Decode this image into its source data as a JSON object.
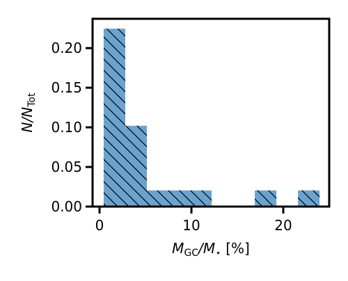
{
  "chart_data": {
    "type": "histogram",
    "bins": [
      0.45,
      2.8,
      5.15,
      7.5,
      9.85,
      12.2,
      14.55,
      16.9,
      19.25,
      21.6,
      23.95
    ],
    "values": [
      0.2245,
      0.102,
      0.0204,
      0.0204,
      0.0204,
      0,
      0,
      0.0204,
      0,
      0.0204
    ],
    "color": "#6ba3cf",
    "hatch": "\\",
    "xlim": [
      -0.76,
      25.0
    ],
    "ylim": [
      0,
      0.237
    ],
    "xticks": [
      0,
      10,
      20
    ],
    "yticks": [
      {
        "value": 0,
        "label": "0.00"
      },
      {
        "value": 0.05,
        "label": "0.05"
      },
      {
        "value": 0.1,
        "label": "0.10"
      },
      {
        "value": 0.15,
        "label": "0.15"
      },
      {
        "value": 0.2,
        "label": "0.20"
      }
    ],
    "xlabel": [
      {
        "text": "M",
        "italic": true
      },
      {
        "text": "GC",
        "sub": true
      },
      {
        "text": "/",
        "italic": true
      },
      {
        "text": "M",
        "italic": true
      },
      {
        "text": "⋆",
        "sub": true
      },
      {
        "text": " [%]"
      }
    ],
    "ylabel": [
      {
        "text": "N",
        "italic": true
      },
      {
        "text": "/",
        "italic": true
      },
      {
        "text": "N",
        "italic": true
      },
      {
        "text": "Tot",
        "sub": true
      }
    ]
  }
}
